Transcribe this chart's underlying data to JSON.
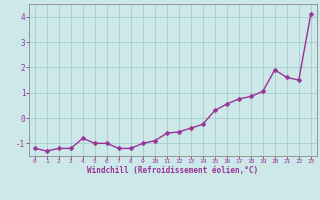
{
  "x": [
    0,
    1,
    2,
    3,
    4,
    5,
    6,
    7,
    8,
    9,
    10,
    11,
    12,
    13,
    14,
    15,
    16,
    17,
    18,
    19,
    20,
    21,
    22,
    23
  ],
  "y": [
    -1.2,
    -1.3,
    -1.2,
    -1.2,
    -0.8,
    -1.0,
    -1.0,
    -1.2,
    -1.2,
    -1.0,
    -0.9,
    -0.6,
    -0.55,
    -0.4,
    -0.25,
    0.3,
    0.55,
    0.75,
    0.85,
    1.05,
    1.9,
    1.6,
    1.5,
    4.1
  ],
  "line_color": "#993399",
  "marker_color": "#993399",
  "bg_color": "#cce8e8",
  "grid_color": "#aacccc",
  "xlabel": "Windchill (Refroidissement éolien,°C)",
  "xlabel_color": "#993399",
  "tick_color": "#993399",
  "axis_color": "#888888",
  "ylim": [
    -1.5,
    4.5
  ],
  "xlim": [
    -0.5,
    23.5
  ],
  "yticks": [
    -1,
    0,
    1,
    2,
    3,
    4
  ],
  "xticks": [
    0,
    1,
    2,
    3,
    4,
    5,
    6,
    7,
    8,
    9,
    10,
    11,
    12,
    13,
    14,
    15,
    16,
    17,
    18,
    19,
    20,
    21,
    22,
    23
  ],
  "marker_size": 2.5,
  "line_width": 1.0
}
